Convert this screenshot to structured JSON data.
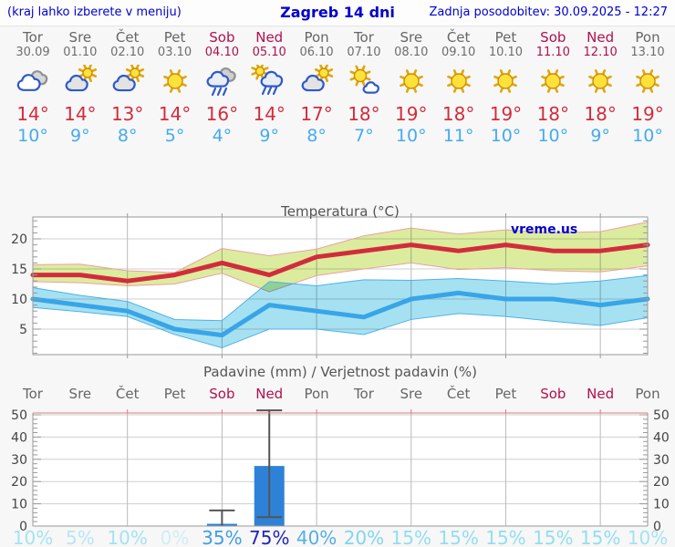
{
  "header": {
    "left_note": "(kraj lahko izberete v meniju)",
    "title": "Zagreb 14 dni",
    "updated": "Zadnja posodobitev: 30.09.2025 - 12:27"
  },
  "colors": {
    "header_blue": "#0000cd",
    "high_temp_red": "#d22c3c",
    "low_temp_blue": "#45abee",
    "weekend_label": "#b01050",
    "weekday_label": "#666666",
    "max_band_green": "#dcec9f",
    "max_band_edge_pink": "#ef9f9f",
    "min_band_cyan": "#a6e1f2",
    "min_band_edge_blue": "#4fb0e8",
    "precip_bar_blue": "#2d82d8",
    "whisker_gray": "#555555",
    "prob_colors": {
      "0": "#cfeef6",
      "5": "#b5e8f4",
      "10": "#a3e3f2",
      "15": "#91def0",
      "20": "#7fd6ed",
      "35": "#3f9ee2",
      "40": "#55aee8",
      "75": "#2424b4"
    }
  },
  "forecast": {
    "days": [
      {
        "name": "Tor",
        "date": "30.09",
        "weekend": false,
        "icon": "cloudy",
        "high": "14°",
        "low": "10°"
      },
      {
        "name": "Sre",
        "date": "01.10",
        "weekend": false,
        "icon": "partly-sunny",
        "high": "14°",
        "low": "9°"
      },
      {
        "name": "Čet",
        "date": "02.10",
        "weekend": false,
        "icon": "partly-sunny",
        "high": "13°",
        "low": "8°"
      },
      {
        "name": "Pet",
        "date": "03.10",
        "weekend": false,
        "icon": "sunny",
        "high": "14°",
        "low": "5°"
      },
      {
        "name": "Sob",
        "date": "04.10",
        "weekend": true,
        "icon": "rain",
        "high": "16°",
        "low": "4°"
      },
      {
        "name": "Ned",
        "date": "05.10",
        "weekend": true,
        "icon": "sun-rain",
        "high": "14°",
        "low": "9°"
      },
      {
        "name": "Pon",
        "date": "06.10",
        "weekend": false,
        "icon": "partly-sunny",
        "high": "17°",
        "low": "8°"
      },
      {
        "name": "Tor",
        "date": "07.10",
        "weekend": false,
        "icon": "mostly-sunny",
        "high": "18°",
        "low": "7°"
      },
      {
        "name": "Sre",
        "date": "08.10",
        "weekend": false,
        "icon": "sunny",
        "high": "19°",
        "low": "10°"
      },
      {
        "name": "Čet",
        "date": "09.10",
        "weekend": false,
        "icon": "sunny",
        "high": "18°",
        "low": "11°"
      },
      {
        "name": "Pet",
        "date": "10.10",
        "weekend": false,
        "icon": "sunny",
        "high": "19°",
        "low": "10°"
      },
      {
        "name": "Sob",
        "date": "11.10",
        "weekend": true,
        "icon": "sunny",
        "high": "18°",
        "low": "10°"
      },
      {
        "name": "Ned",
        "date": "12.10",
        "weekend": true,
        "icon": "sunny",
        "high": "18°",
        "low": "9°"
      },
      {
        "name": "Pon",
        "date": "13.10",
        "weekend": false,
        "icon": "sunny",
        "high": "19°",
        "low": "10°"
      }
    ]
  },
  "chart_data": [
    {
      "type": "line",
      "title": "Temperatura (°C)",
      "watermark": "vreme.us",
      "categories": [
        "Tor",
        "Sre",
        "Čet",
        "Pet",
        "Sob",
        "Ned",
        "Pon",
        "Tor",
        "Sre",
        "Čet",
        "Pet",
        "Sob",
        "Ned",
        "Pon"
      ],
      "ylim": [
        0.8,
        23.6
      ],
      "yticks": [
        5,
        10,
        15,
        20
      ],
      "grid": true,
      "legend": "none",
      "series": [
        {
          "name": "max-temperature",
          "color": "#d22c3c",
          "values": [
            14,
            14,
            13,
            14,
            16,
            14,
            17,
            18,
            19,
            18,
            19,
            18,
            18,
            19
          ]
        },
        {
          "name": "min-temperature",
          "color": "#38a5e8",
          "values": [
            10,
            9,
            8,
            5,
            4,
            9,
            8,
            7,
            10,
            11,
            10,
            10,
            9,
            10
          ]
        },
        {
          "name": "max-range-upper",
          "color": "#dcec9f",
          "values": [
            15.7,
            15.8,
            14.7,
            14.4,
            18.4,
            17.2,
            18.3,
            20.5,
            21.8,
            20.8,
            21.5,
            21.0,
            21.2,
            22.8
          ]
        },
        {
          "name": "max-range-lower",
          "color": "#dcec9f",
          "values": [
            12.9,
            12.7,
            12.2,
            12.5,
            14.3,
            11.2,
            13.9,
            15.0,
            16.0,
            14.9,
            15.2,
            14.7,
            14.5,
            15.5
          ]
        },
        {
          "name": "min-range-upper",
          "color": "#a6e1f2",
          "values": [
            11.9,
            10.6,
            9.6,
            6.6,
            6.4,
            12.9,
            12.2,
            13.2,
            13.1,
            13.4,
            13.0,
            12.5,
            13.0,
            13.9
          ]
        },
        {
          "name": "min-range-lower",
          "color": "#a6e1f2",
          "values": [
            8.6,
            7.9,
            7.1,
            4.1,
            1.9,
            5.0,
            5.0,
            4.1,
            6.6,
            7.6,
            7.1,
            6.3,
            5.6,
            6.9
          ]
        }
      ]
    },
    {
      "type": "bar",
      "title": "Padavine (mm) / Verjetnost padavin (%)",
      "categories": [
        "Tor",
        "Sre",
        "Čet",
        "Pet",
        "Sob",
        "Ned",
        "Pon",
        "Tor",
        "Sre",
        "Čet",
        "Pet",
        "Sob",
        "Ned",
        "Pon"
      ],
      "values": [
        0,
        0,
        0,
        0,
        1,
        27,
        0,
        0,
        0,
        0,
        0,
        0,
        0,
        0
      ],
      "whiskers": [
        {
          "day_index": 4,
          "low": 0,
          "high": 7
        },
        {
          "day_index": 5,
          "low": 4,
          "high": 52
        }
      ],
      "probabilities_pct": [
        10,
        5,
        10,
        0,
        35,
        75,
        40,
        20,
        15,
        15,
        15,
        15,
        15,
        10
      ],
      "ylim": [
        0,
        53
      ],
      "yticks": [
        0,
        10,
        20,
        30,
        40,
        50
      ],
      "grid": true
    }
  ]
}
